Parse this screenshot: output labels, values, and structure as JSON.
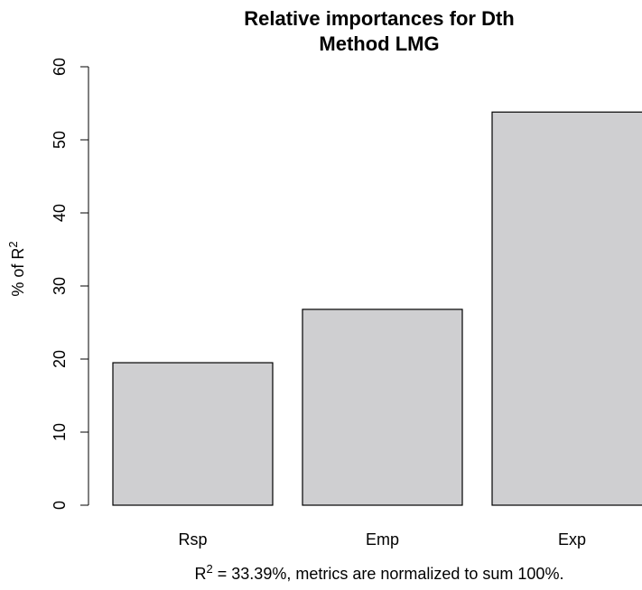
{
  "chart_data": {
    "type": "bar",
    "title": "Relative importances for Dth",
    "subtitle": "Method LMG",
    "categories": [
      "Rsp",
      "Emp",
      "Exp"
    ],
    "values": [
      19.5,
      26.8,
      53.8
    ],
    "ylabel": {
      "prefix": "% of R",
      "sup": "2"
    },
    "ylim": [
      0,
      60
    ],
    "yticks": [
      0,
      10,
      20,
      30,
      40,
      50,
      60
    ],
    "ytick_labels": [
      "0",
      "10",
      "20",
      "30",
      "40",
      "50",
      "60"
    ],
    "footnote": {
      "prefix": "R",
      "sup": "2",
      "rest": " = 33.39%, metrics are normalized to sum 100%."
    },
    "bar_color": "#cfcfd1",
    "bar_edge_color": "#000000",
    "grid": false,
    "legend": "none"
  }
}
